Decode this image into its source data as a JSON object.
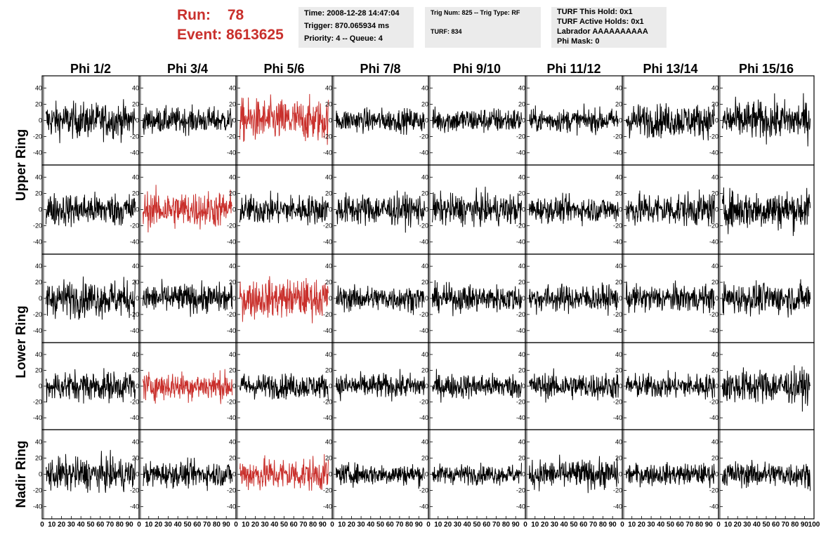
{
  "header": {
    "run_label": "Run:",
    "run_value": "78",
    "event_label": "Event:",
    "event_value": "8613625",
    "time": "Time: 2008-12-28 14:47:04",
    "trigger": "Trigger: 870.065934 ms",
    "priority": "Priority: 4 -- Queue: 4",
    "trig_num": "Trig Num: 825 -- Trig Type: RF",
    "turf": "TURF: 834",
    "turf_hold": "TURF This Hold: 0x1",
    "turf_active": "TURF Active Holds: 0x1",
    "labrador": "Labrador AAAAAAAAAA",
    "phi_mask": "Phi Mask: 0"
  },
  "colors": {
    "normal_trace": "#000000",
    "triggered_trace": "#c9302c",
    "header_red": "#c9302c",
    "info_bg": "#ebebeb"
  },
  "chart_data": {
    "type": "line",
    "columns": [
      "Phi 1/2",
      "Phi 3/4",
      "Phi 5/6",
      "Phi 7/8",
      "Phi 9/10",
      "Phi 11/12",
      "Phi 13/14",
      "Phi 15/16"
    ],
    "rows": [
      "Upper Ring",
      "Upper Ring",
      "Lower Ring",
      "Lower Ring",
      "Nadir Ring"
    ],
    "row_labels": [
      {
        "label": "Upper Ring",
        "span": [
          0,
          1
        ]
      },
      {
        "label": "Lower Ring",
        "span": [
          2,
          3
        ]
      },
      {
        "label": "Nadir Ring",
        "span": [
          4,
          4
        ]
      }
    ],
    "xlim": [
      0,
      100
    ],
    "ylim": [
      -55,
      55
    ],
    "x_ticks": [
      "0",
      "10",
      "20",
      "30",
      "40",
      "50",
      "60",
      "70",
      "80",
      "90",
      "100"
    ],
    "y_ticks": [
      "40",
      "20",
      "0",
      "-20",
      "-40"
    ],
    "y_tick_values": [
      40,
      20,
      0,
      -20,
      -40
    ],
    "amplitude": [
      [
        18,
        13,
        22,
        12,
        13,
        12,
        17,
        20
      ],
      [
        17,
        19,
        15,
        16,
        16,
        13,
        17,
        20
      ],
      [
        19,
        15,
        20,
        13,
        14,
        14,
        14,
        16
      ],
      [
        16,
        15,
        13,
        13,
        13,
        14,
        13,
        18
      ],
      [
        17,
        13,
        17,
        11,
        10,
        15,
        11,
        13
      ]
    ],
    "highlighted": [
      [
        0,
        2
      ],
      [
        1,
        1
      ],
      [
        2,
        2
      ],
      [
        3,
        1
      ],
      [
        4,
        2
      ]
    ],
    "samples_per_trace": 260
  }
}
